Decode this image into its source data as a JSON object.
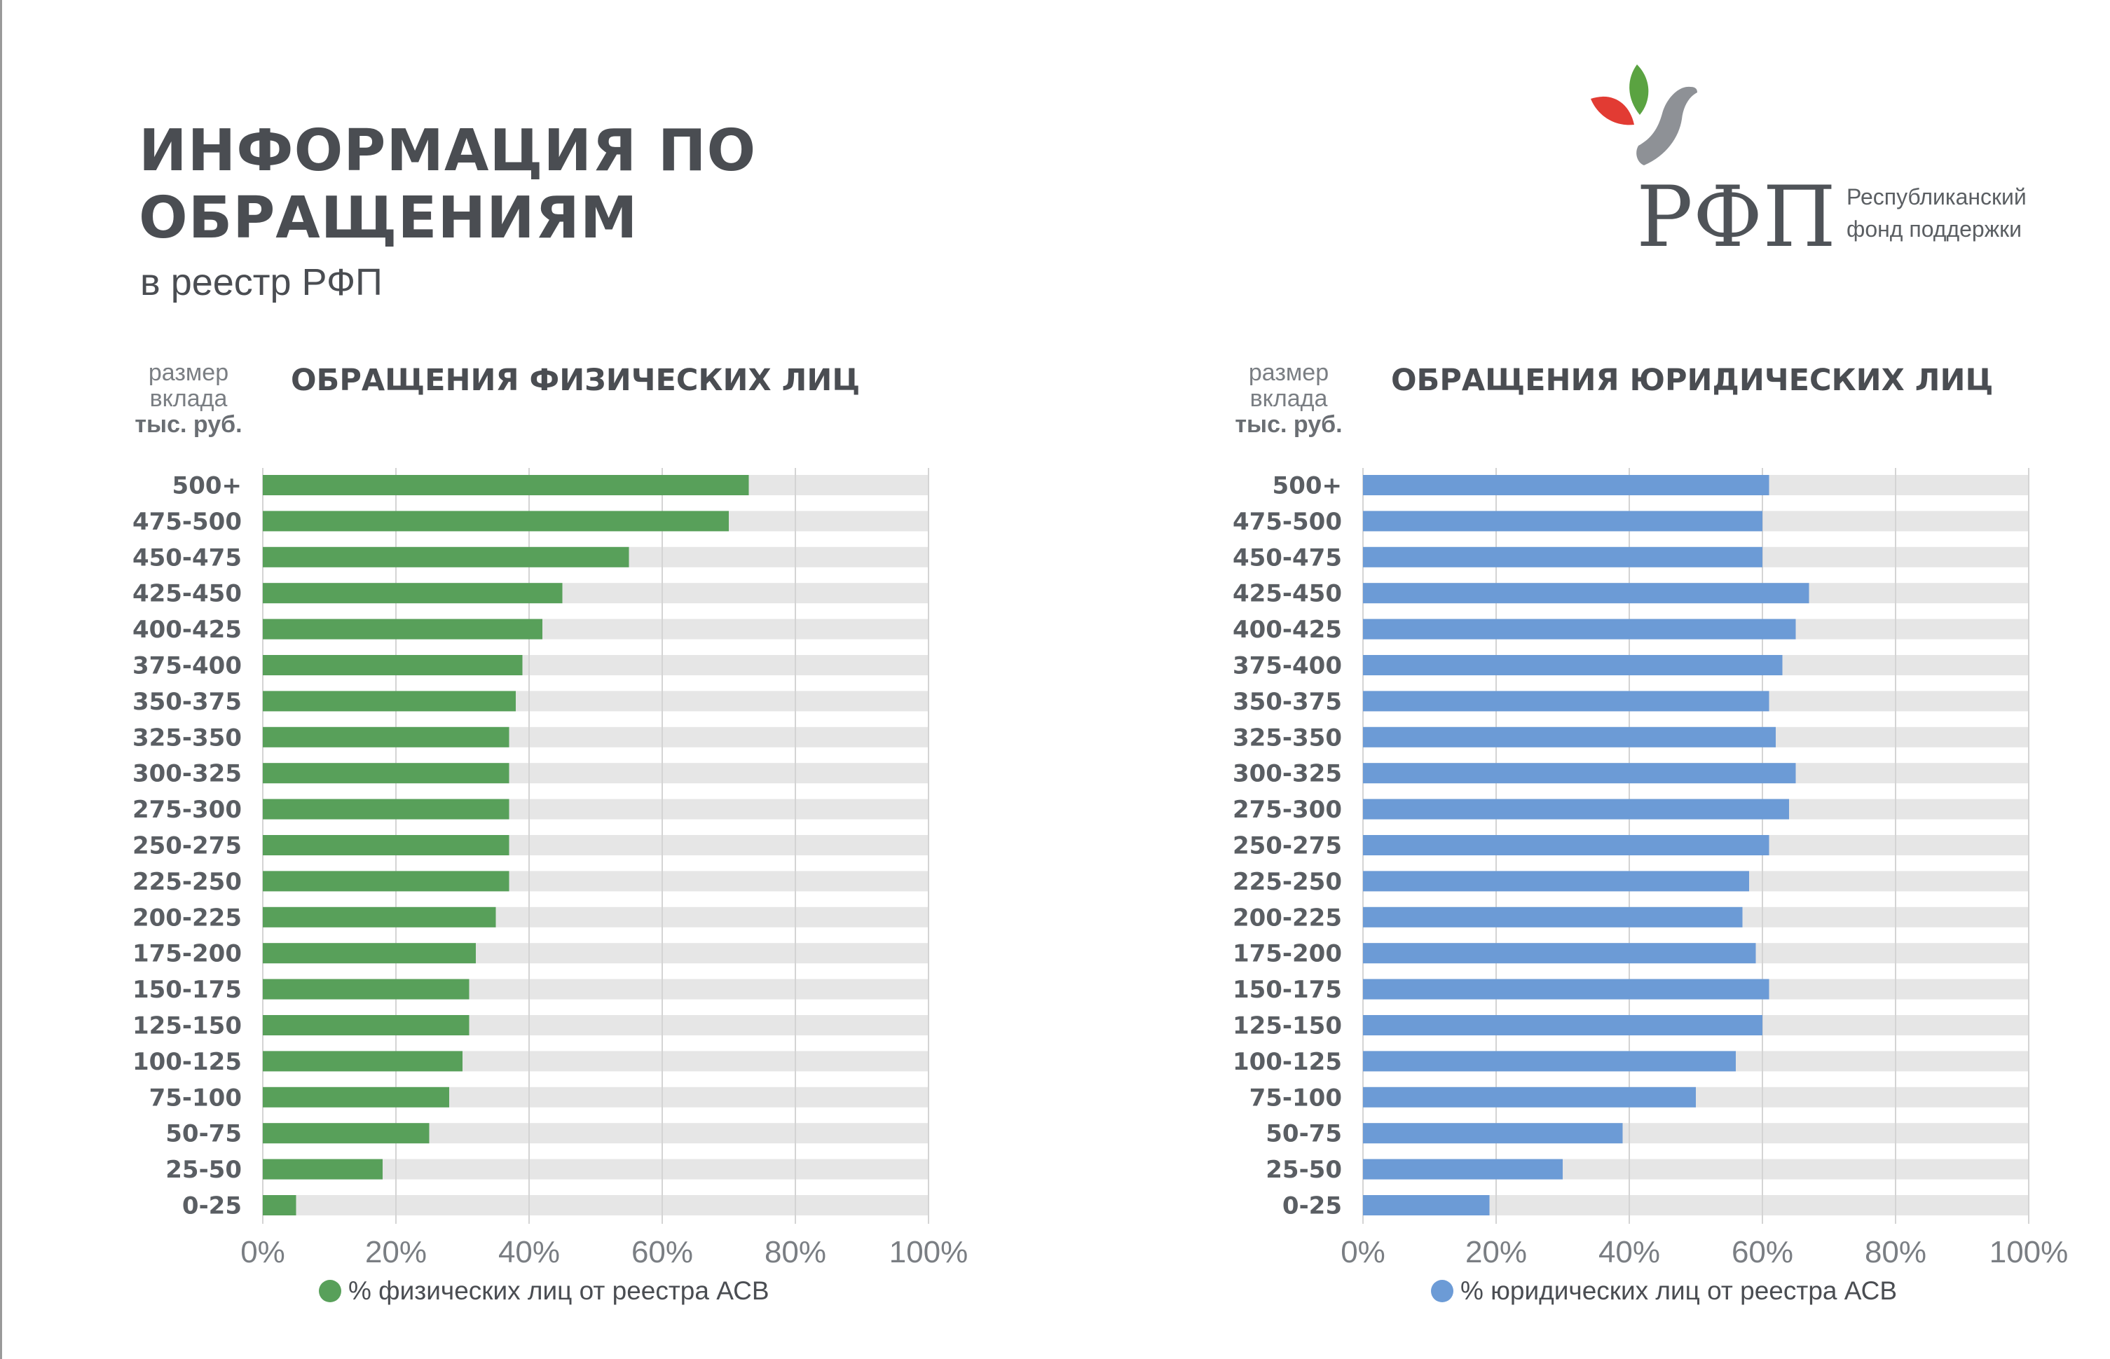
{
  "header": {
    "title_line1": "ИНФОРМАЦИЯ ПО",
    "title_line2": "ОБРАЩЕНИЯМ",
    "subtitle": "в реестр РФП"
  },
  "logo": {
    "abbr": "РФП",
    "name_line1": "Республиканский",
    "name_line2": "фонд поддержки",
    "leaf_colors": [
      "#e23b33",
      "#5aa341",
      "#8e9196"
    ]
  },
  "unit_label": {
    "line1": "размер",
    "line2": "вклада",
    "line3": "тыс. руб."
  },
  "chart_data": [
    {
      "type": "bar",
      "orientation": "horizontal",
      "title": "ОБРАЩЕНИЯ ФИЗИЧЕСКИХ ЛИЦ",
      "categories": [
        "500+",
        "475-500",
        "450-475",
        "425-450",
        "400-425",
        "375-400",
        "350-375",
        "325-350",
        "300-325",
        "275-300",
        "250-275",
        "225-250",
        "200-225",
        "175-200",
        "150-175",
        "125-150",
        "100-125",
        "75-100",
        "50-75",
        "25-50",
        "0-25"
      ],
      "series": [
        {
          "name": "% физических лиц от реестра АСВ",
          "values": [
            73,
            70,
            55,
            45,
            42,
            39,
            38,
            37,
            37,
            37,
            37,
            37,
            35,
            32,
            31,
            31,
            30,
            28,
            25,
            18,
            5
          ],
          "color": "#58a05a"
        }
      ],
      "xlim": [
        0,
        100
      ],
      "xticks": [
        "0%",
        "20%",
        "40%",
        "60%",
        "80%",
        "100%"
      ],
      "track_color": "#e6e6e6",
      "grid": true,
      "legend_position": "bottom"
    },
    {
      "type": "bar",
      "orientation": "horizontal",
      "title": "ОБРАЩЕНИЯ ЮРИДИЧЕСКИХ ЛИЦ",
      "categories": [
        "500+",
        "475-500",
        "450-475",
        "425-450",
        "400-425",
        "375-400",
        "350-375",
        "325-350",
        "300-325",
        "275-300",
        "250-275",
        "225-250",
        "200-225",
        "175-200",
        "150-175",
        "125-150",
        "100-125",
        "75-100",
        "50-75",
        "25-50",
        "0-25"
      ],
      "series": [
        {
          "name": "% юридических лиц от реестра АСВ",
          "values": [
            61,
            60,
            60,
            67,
            65,
            63,
            61,
            62,
            65,
            64,
            61,
            58,
            57,
            59,
            61,
            60,
            56,
            50,
            39,
            30,
            19
          ],
          "color": "#6c9bd6"
        }
      ],
      "xlim": [
        0,
        100
      ],
      "xticks": [
        "0%",
        "20%",
        "40%",
        "60%",
        "80%",
        "100%"
      ],
      "track_color": "#e6e6e6",
      "grid": true,
      "legend_position": "bottom"
    }
  ]
}
